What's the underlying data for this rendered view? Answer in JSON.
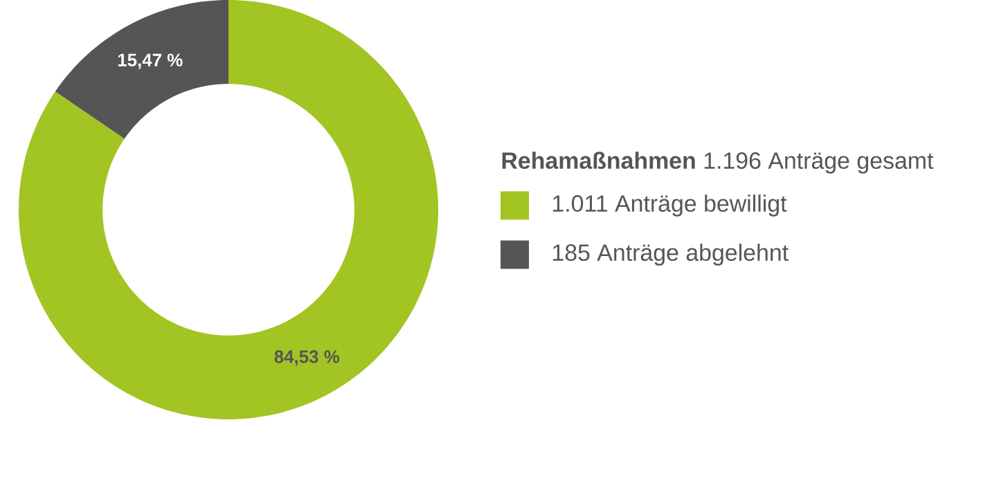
{
  "chart_data": {
    "type": "donut",
    "title": "**Rehamaßnahmen** 1.196 Anträge gesamt",
    "categories": [
      "1.011 Anträge bewilligt",
      "185 Anträge abgelehnt"
    ],
    "values": [
      84.53,
      15.47
    ],
    "colors": [
      "#a2c523",
      "#555555"
    ],
    "value_labels": [
      "84,53 %",
      "15,47 %"
    ],
    "legend": "right"
  }
}
